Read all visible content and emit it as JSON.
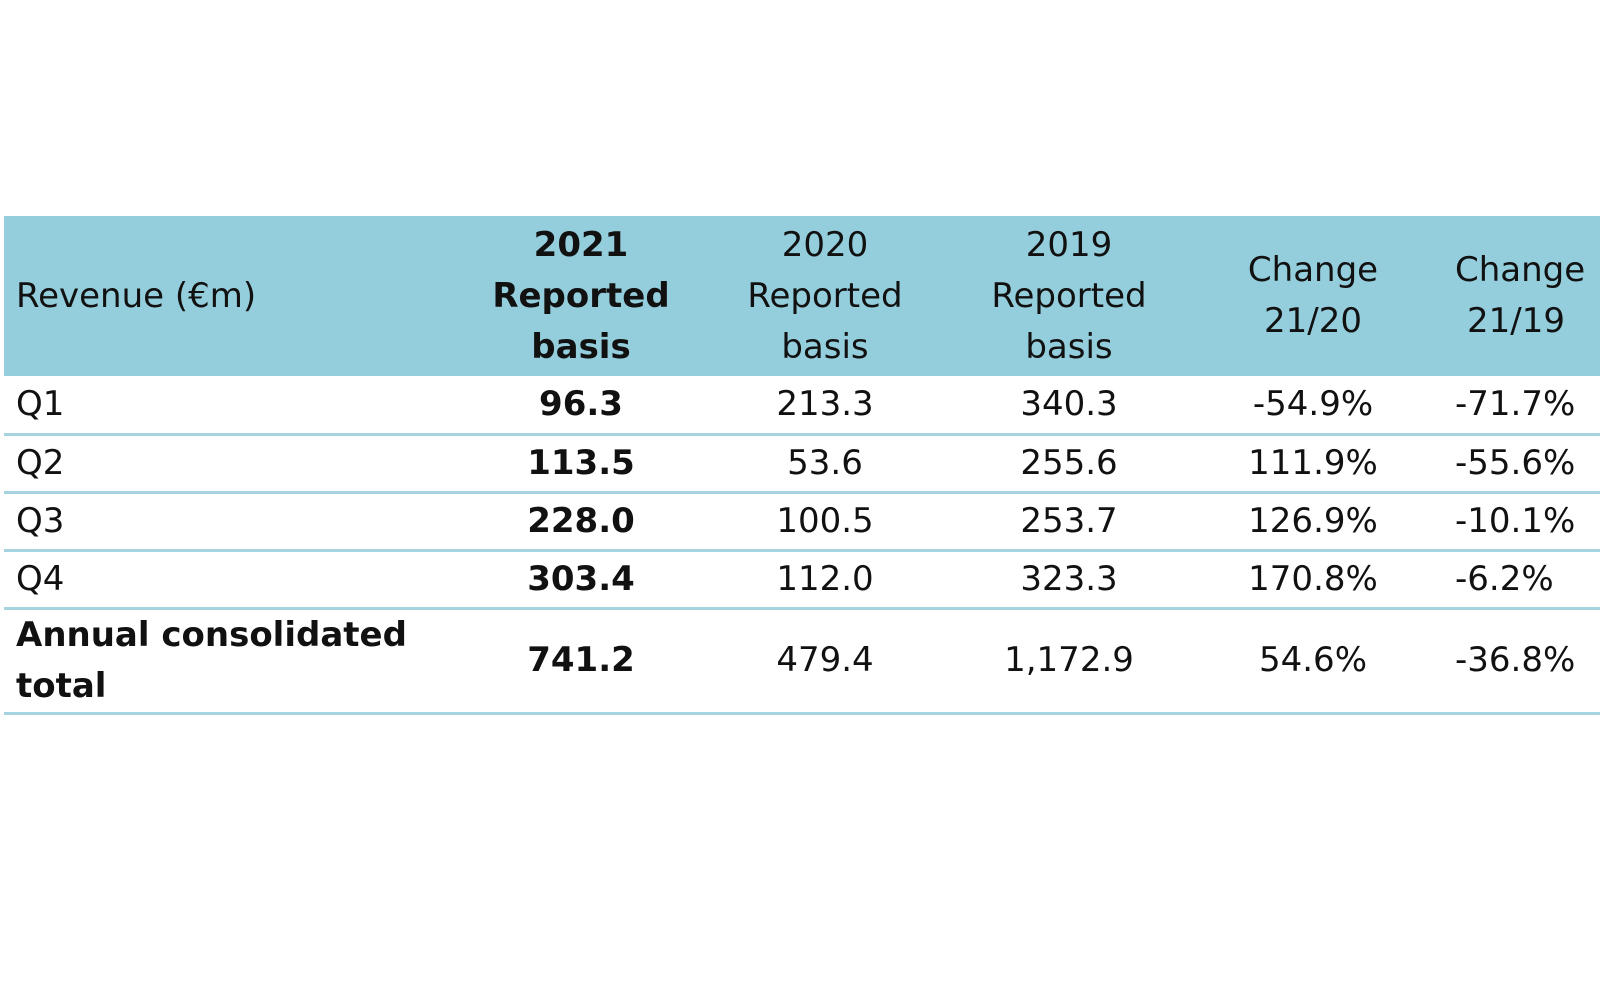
{
  "table": {
    "header": {
      "label": "Revenue (€m)",
      "col2021": [
        "2021",
        "Reported",
        "basis"
      ],
      "col2020": [
        "2020",
        "Reported",
        "basis"
      ],
      "col2019": [
        "2019",
        "Reported",
        "basis"
      ],
      "change2120": [
        "Change",
        "21/20"
      ],
      "change2119": [
        "Change",
        "21/19"
      ]
    },
    "rows": [
      {
        "label": "Q1",
        "y2021": "96.3",
        "y2020": "213.3",
        "y2019": "340.3",
        "ch2120": "-54.9%",
        "ch2119": "-71.7%"
      },
      {
        "label": "Q2",
        "y2021": "113.5",
        "y2020": "53.6",
        "y2019": "255.6",
        "ch2120": "111.9%",
        "ch2119": "-55.6%"
      },
      {
        "label": "Q3",
        "y2021": "228.0",
        "y2020": "100.5",
        "y2019": "253.7",
        "ch2120": "126.9%",
        "ch2119": "-10.1%"
      },
      {
        "label": "Q4",
        "y2021": "303.4",
        "y2020": "112.0",
        "y2019": "323.3",
        "ch2120": "170.8%",
        "ch2119": "-6.2%"
      },
      {
        "label": "Annual consolidated total",
        "y2021": "741.2",
        "y2020": "479.4",
        "y2019": "1,172.9",
        "ch2120": "54.6%",
        "ch2119": "-36.8%"
      }
    ]
  },
  "colors": {
    "header_bg": "#94cddc",
    "row_border": "#a5d3e0"
  }
}
